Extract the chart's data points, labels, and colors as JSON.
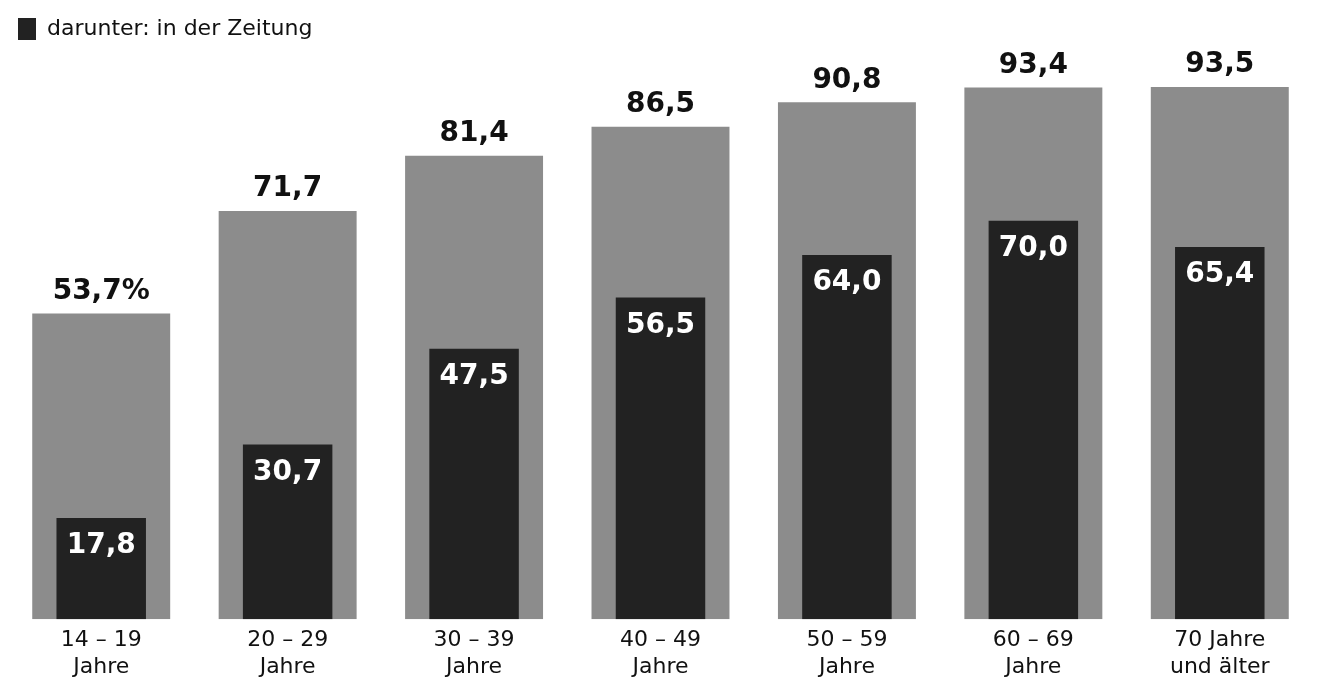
{
  "chart_data": {
    "type": "bar",
    "categories": [
      "14 – 19\nJahre",
      "20 – 29\nJahre",
      "30 – 39\nJahre",
      "40 – 49\nJahre",
      "50 – 59\nJahre",
      "60 – 69\nJahre",
      "70 Jahre\nund älter"
    ],
    "series": [
      {
        "color": "#8c8c8c",
        "values": [
          53.7,
          71.7,
          81.4,
          86.5,
          90.8,
          93.4,
          93.5
        ],
        "value_labels": [
          "53,7%",
          "71,7",
          "81,4",
          "86,5",
          "90,8",
          "93,4",
          "93,5"
        ]
      },
      {
        "name": "darunter: in der Zeitung",
        "color": "#222222",
        "values": [
          17.8,
          30.7,
          47.5,
          56.5,
          64.0,
          70.0,
          65.4
        ],
        "value_labels": [
          "17,8",
          "30,7",
          "47,5",
          "56,5",
          "64,0",
          "70,0",
          "65,4"
        ]
      }
    ],
    "legend": "top left",
    "grid": false
  }
}
